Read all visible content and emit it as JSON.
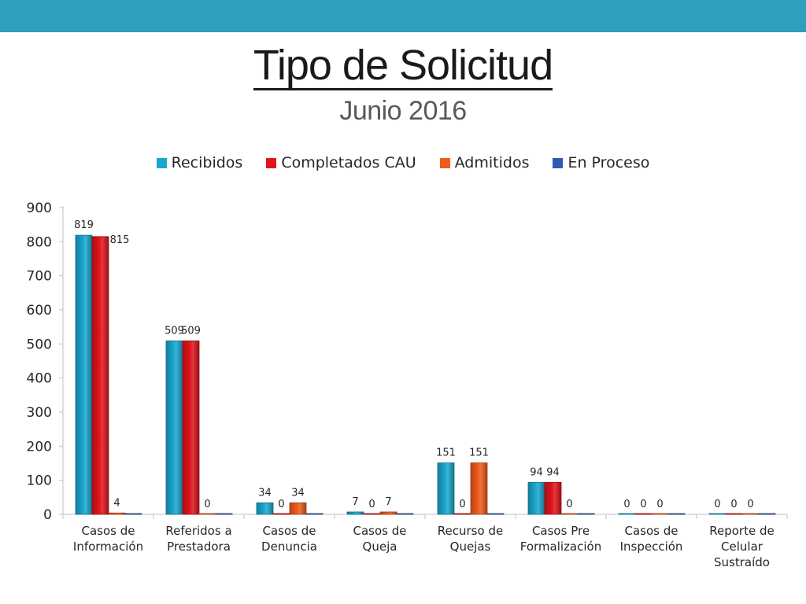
{
  "header": {
    "title": "Tipo de Solicitud",
    "subtitle": "Junio 2016"
  },
  "colors": {
    "band": "#2e9fbd",
    "recibidos": "#1aa7cf",
    "completados": "#e3141c",
    "admitidos": "#f15a1a",
    "en_proceso": "#2f5bb0"
  },
  "chart_data": {
    "type": "bar",
    "categories": [
      [
        "Casos de",
        "Información"
      ],
      [
        "Referidos a",
        "Prestadora"
      ],
      [
        "Casos de",
        "Denuncia"
      ],
      [
        "Casos de",
        "Queja"
      ],
      [
        "Recurso de",
        "Quejas"
      ],
      [
        "Casos Pre",
        "Formalización"
      ],
      [
        "Casos de",
        "Inspección"
      ],
      [
        "Reporte de",
        "Celular",
        "Sustraído"
      ]
    ],
    "series": [
      {
        "name": "Recibidos",
        "color": "#1aa7cf",
        "values": [
          819,
          509,
          34,
          7,
          151,
          94,
          0,
          0
        ]
      },
      {
        "name": "Completados CAU",
        "color": "#e3141c",
        "values": [
          815,
          509,
          0,
          0,
          0,
          94,
          0,
          0
        ]
      },
      {
        "name": "Admitidos",
        "color": "#f15a1a",
        "values": [
          4,
          0,
          34,
          7,
          151,
          0,
          0,
          0
        ]
      },
      {
        "name": "En Proceso",
        "color": "#2f5bb0",
        "values": [
          0,
          0,
          0,
          0,
          0,
          0,
          0,
          0
        ]
      }
    ],
    "ylim": [
      0,
      900
    ],
    "yticks": [
      0,
      100,
      200,
      300,
      400,
      500,
      600,
      700,
      800,
      900
    ],
    "legend_position": "top",
    "grid": false
  }
}
